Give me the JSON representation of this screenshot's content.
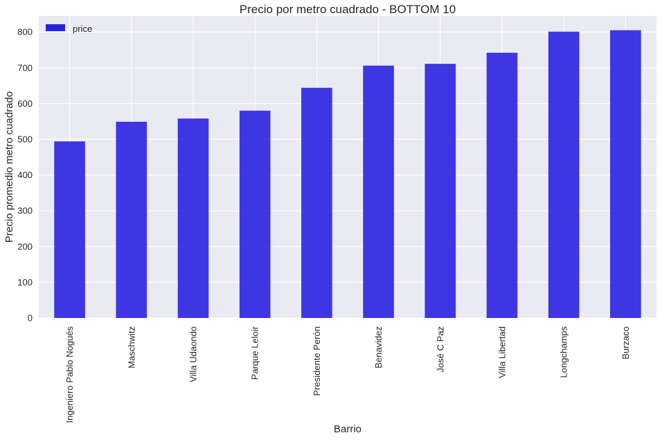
{
  "chart_data": {
    "type": "bar",
    "title": "Precio por metro cuadrado - BOTTOM 10",
    "xlabel": "Barrio",
    "ylabel": "Precio promedio metro cuadrado",
    "categories": [
      "Ingeniero Pablo Nogués",
      "Maschwitz",
      "Villa Udaondo",
      "Parque Leloir",
      "Presidente Perón",
      "Benavidez",
      "José C Paz",
      "Villa Libertad",
      "Longchamps",
      "Burzaco"
    ],
    "series": [
      {
        "name": "price",
        "values": [
          494,
          549,
          558,
          580,
          644,
          706,
          711,
          742,
          801,
          805
        ]
      }
    ],
    "ylim": [
      0,
      845
    ],
    "yticks": [
      0,
      100,
      200,
      300,
      400,
      500,
      600,
      700,
      800
    ],
    "grid": true,
    "legend_position": "top-left",
    "colors": {
      "bar": "#2b22e0",
      "background": "#eaeaf2",
      "grid": "#ffffff"
    }
  }
}
